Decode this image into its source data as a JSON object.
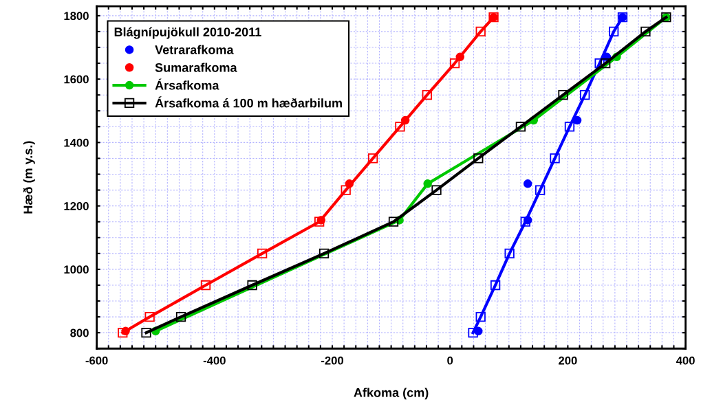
{
  "chart_data": {
    "type": "line",
    "xlabel": "Afkoma (cm)",
    "ylabel": "Hæð (m y.s.)",
    "legend_title": "Blágnípujökull 2010-2011",
    "xlim": [
      -600,
      400
    ],
    "ylim": [
      750,
      1830
    ],
    "xticks": [
      -600,
      {
        "value": -580,
        "label": null
      },
      {
        "value": -560,
        "label": null
      },
      {
        "value": -540,
        "label": null
      },
      {
        "value": -520,
        "label": null
      },
      {
        "value": -500,
        "label": null
      },
      {
        "value": -480,
        "label": null
      },
      {
        "value": -460,
        "label": null
      },
      {
        "value": -440,
        "label": null
      },
      {
        "value": -420,
        "label": null
      },
      -400,
      {
        "value": -380,
        "label": null
      },
      {
        "value": -360,
        "label": null
      },
      {
        "value": -340,
        "label": null
      },
      {
        "value": -320,
        "label": null
      },
      {
        "value": -300,
        "label": null
      },
      {
        "value": -280,
        "label": null
      },
      {
        "value": -260,
        "label": null
      },
      {
        "value": -240,
        "label": null
      },
      {
        "value": -220,
        "label": null
      },
      -200,
      {
        "value": -180,
        "label": null
      },
      {
        "value": -160,
        "label": null
      },
      {
        "value": -140,
        "label": null
      },
      {
        "value": -120,
        "label": null
      },
      {
        "value": -100,
        "label": null
      },
      {
        "value": -80,
        "label": null
      },
      {
        "value": -60,
        "label": null
      },
      {
        "value": -40,
        "label": null
      },
      {
        "value": -20,
        "label": null
      },
      0,
      {
        "value": 20,
        "label": null
      },
      {
        "value": 40,
        "label": null
      },
      {
        "value": 60,
        "label": null
      },
      {
        "value": 80,
        "label": null
      },
      {
        "value": 100,
        "label": null
      },
      {
        "value": 120,
        "label": null
      },
      {
        "value": 140,
        "label": null
      },
      {
        "value": 160,
        "label": null
      },
      {
        "value": 180,
        "label": null
      },
      200,
      {
        "value": 220,
        "label": null
      },
      {
        "value": 240,
        "label": null
      },
      {
        "value": 260,
        "label": null
      },
      {
        "value": 280,
        "label": null
      },
      {
        "value": 300,
        "label": null
      },
      {
        "value": 320,
        "label": null
      },
      {
        "value": 340,
        "label": null
      },
      {
        "value": 360,
        "label": null
      },
      {
        "value": 380,
        "label": null
      },
      400
    ],
    "yticks": [
      {
        "value": 750,
        "label": null
      },
      800,
      {
        "value": 850,
        "label": null
      },
      {
        "value": 900,
        "label": null
      },
      {
        "value": 950,
        "label": null
      },
      1000,
      {
        "value": 1050,
        "label": null
      },
      {
        "value": 1100,
        "label": null
      },
      {
        "value": 1150,
        "label": null
      },
      1200,
      {
        "value": 1250,
        "label": null
      },
      {
        "value": 1300,
        "label": null
      },
      {
        "value": 1350,
        "label": null
      },
      1400,
      {
        "value": 1450,
        "label": null
      },
      {
        "value": 1500,
        "label": null
      },
      {
        "value": 1550,
        "label": null
      },
      1600,
      {
        "value": 1650,
        "label": null
      },
      {
        "value": 1700,
        "label": null
      },
      {
        "value": 1750,
        "label": null
      },
      1800
    ],
    "grid": true,
    "legend": "top left",
    "series": [
      {
        "name": "Vetrarafkoma",
        "type": "scatter",
        "marker": "circle",
        "color": "#0000ff",
        "x": [
          48,
          132,
          132,
          216,
          266,
          293
        ],
        "values": [
          805,
          1155,
          1270,
          1470,
          1670,
          1795
        ]
      },
      {
        "name": "Sumarafkoma",
        "type": "scatter",
        "marker": "circle",
        "color": "#ff0000",
        "x": [
          -551,
          -219,
          -171,
          -76,
          17,
          74
        ],
        "values": [
          805,
          1155,
          1270,
          1470,
          1670,
          1795
        ]
      },
      {
        "name": "Ársafkoma",
        "marker": "circle",
        "color": "#00c800",
        "x": [
          -500,
          -86,
          -38,
          142,
          283,
          367
        ],
        "values": [
          805,
          1155,
          1270,
          1470,
          1670,
          1795
        ]
      },
      {
        "name": "Ársafkoma á 100 m hæðarbilum",
        "marker": "square",
        "color": "#000000",
        "x": [
          -516,
          -457,
          -336,
          -214,
          -96,
          -23,
          48,
          120,
          192,
          264,
          332,
          367
        ],
        "values": [
          800,
          850,
          950,
          1050,
          1150,
          1250,
          1350,
          1450,
          1550,
          1650,
          1750,
          1795
        ]
      },
      {
        "marker": "square",
        "color": "#0000ff",
        "x": [
          39,
          52,
          77,
          101,
          128,
          153,
          178,
          203,
          229,
          254,
          278,
          293
        ],
        "values": [
          800,
          850,
          950,
          1050,
          1150,
          1250,
          1350,
          1450,
          1550,
          1650,
          1750,
          1795
        ]
      },
      {
        "marker": "square",
        "color": "#ff0000",
        "x": [
          -556,
          -510,
          -415,
          -319,
          -222,
          -177,
          -131,
          -85,
          -39,
          8,
          52,
          74
        ],
        "values": [
          800,
          850,
          950,
          1050,
          1150,
          1250,
          1350,
          1450,
          1550,
          1650,
          1750,
          1795
        ]
      }
    ]
  }
}
